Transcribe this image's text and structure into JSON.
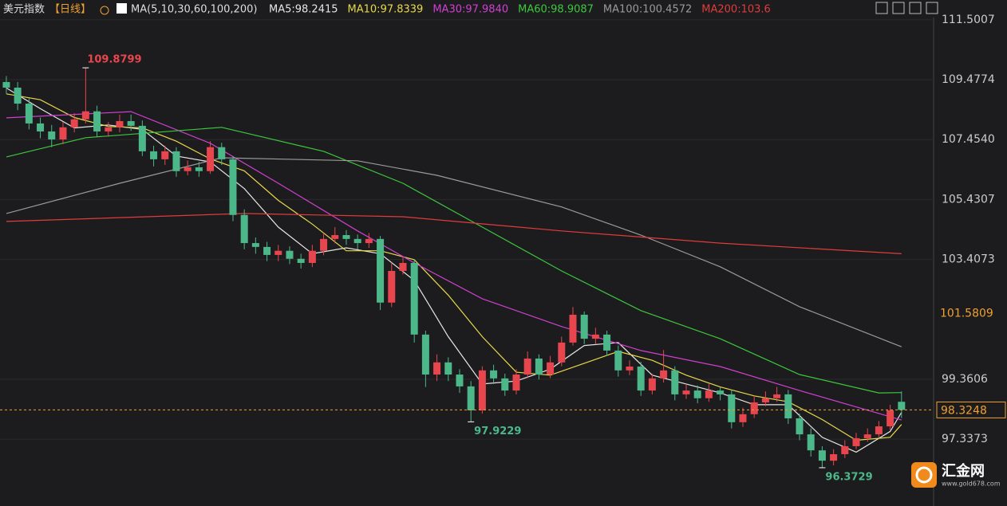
{
  "chart_data": {
    "type": "candlestick",
    "title": "美元指数",
    "period": "【日线】",
    "ma_label": "MA(5,10,30,60,100,200)",
    "ylim": [
      95.08,
      112.17
    ],
    "xlim": [
      -0.56,
      81.83
    ],
    "yticks": [
      111.5007,
      109.4774,
      {
        "value": 107.454,
        "label": "107.4540"
      },
      105.4307,
      103.4073,
      99.3606,
      97.3373
    ],
    "marker": 101.5809,
    "up_color": "#e8464e",
    "down_color": "#4cb88a",
    "open": [
      109.4,
      109.21,
      108.67,
      108.0,
      107.73,
      107.46,
      107.87,
      108.14,
      108.41,
      107.73,
      107.87,
      108.08,
      107.92,
      107.06,
      106.79,
      107.06,
      106.39,
      106.52,
      106.39,
      107.2,
      106.79,
      104.91,
      103.96,
      103.83,
      103.56,
      103.7,
      103.43,
      103.29,
      103.7,
      104.1,
      104.23,
      104.1,
      103.96,
      104.1,
      101.95,
      103.02,
      103.29,
      100.87,
      99.52,
      99.93,
      99.52,
      99.12,
      98.31,
      99.66,
      99.39,
      98.98,
      99.52,
      100.06,
      99.52,
      99.93,
      100.6,
      101.54,
      100.73,
      100.87,
      100.33,
      99.66,
      99.79,
      98.98,
      99.39,
      99.66,
      98.85,
      98.98,
      98.72,
      98.98,
      98.85,
      97.91,
      98.18,
      98.58,
      98.72,
      98.85,
      98.04,
      97.5,
      96.96,
      96.61,
      96.83,
      97.1,
      97.37,
      97.5,
      97.77,
      98.6
    ],
    "high": [
      109.6,
      109.4,
      108.85,
      108.2,
      107.95,
      108.05,
      108.35,
      109.8799,
      108.6,
      108.05,
      108.3,
      108.3,
      108.1,
      107.25,
      107.25,
      107.2,
      106.75,
      106.7,
      107.4,
      107.35,
      106.9,
      105.1,
      104.15,
      104.0,
      103.9,
      103.85,
      103.6,
      103.9,
      104.3,
      104.5,
      104.4,
      104.25,
      104.3,
      104.2,
      103.3,
      103.5,
      103.4,
      101.0,
      100.2,
      100.1,
      99.7,
      99.3,
      99.8,
      99.85,
      99.55,
      99.7,
      100.3,
      100.2,
      100.15,
      100.8,
      101.8,
      101.65,
      101.1,
      101.0,
      100.5,
      100.0,
      99.95,
      99.55,
      100.35,
      99.8,
      99.2,
      99.15,
      99.2,
      99.1,
      99.0,
      98.4,
      98.8,
      98.95,
      99.1,
      99.0,
      98.2,
      97.7,
      97.1,
      97.0,
      97.3,
      97.55,
      97.7,
      97.95,
      98.5,
      98.95
    ],
    "low": [
      109.0,
      108.45,
      107.8,
      107.5,
      107.2,
      107.3,
      107.7,
      108.0,
      107.55,
      107.55,
      107.7,
      107.75,
      106.9,
      106.55,
      106.6,
      106.2,
      106.25,
      106.2,
      106.3,
      106.6,
      104.7,
      103.75,
      103.6,
      103.35,
      103.35,
      103.25,
      103.1,
      103.15,
      103.55,
      103.95,
      103.9,
      103.75,
      103.8,
      101.7,
      101.8,
      102.9,
      100.6,
      99.1,
      99.3,
      99.3,
      98.9,
      97.9229,
      98.2,
      99.2,
      98.8,
      98.85,
      99.4,
      99.35,
      99.4,
      99.8,
      100.5,
      100.55,
      100.55,
      100.15,
      99.45,
      99.5,
      98.8,
      98.85,
      99.25,
      98.65,
      98.7,
      98.55,
      98.6,
      98.65,
      97.7,
      97.75,
      98.05,
      98.45,
      98.6,
      97.85,
      97.3,
      96.75,
      96.3729,
      96.45,
      96.7,
      97.0,
      97.25,
      97.4,
      97.65,
      98.05
    ],
    "close": [
      109.21,
      108.67,
      108.0,
      107.73,
      107.46,
      107.87,
      108.14,
      108.41,
      107.73,
      107.87,
      108.08,
      107.92,
      107.06,
      106.79,
      107.06,
      106.39,
      106.52,
      106.39,
      107.2,
      106.79,
      104.91,
      103.96,
      103.83,
      103.56,
      103.7,
      103.43,
      103.29,
      103.7,
      104.1,
      104.23,
      104.1,
      103.96,
      104.1,
      101.95,
      103.02,
      103.29,
      100.87,
      99.52,
      99.93,
      99.52,
      99.12,
      98.31,
      99.66,
      99.39,
      98.98,
      99.52,
      100.06,
      99.52,
      99.93,
      100.6,
      101.54,
      100.73,
      100.87,
      100.33,
      99.66,
      99.79,
      98.98,
      99.39,
      99.66,
      98.85,
      98.98,
      98.72,
      98.98,
      98.85,
      97.91,
      98.18,
      98.58,
      98.72,
      98.85,
      98.04,
      97.5,
      96.96,
      96.61,
      96.83,
      97.1,
      97.37,
      97.5,
      97.77,
      98.31,
      98.3248
    ],
    "series": [
      {
        "name": "MA5:98.2415",
        "color": "#e6e6e6",
        "x": [
          0,
          3,
          6,
          9,
          12,
          15,
          18,
          21,
          24,
          27,
          30,
          33,
          36,
          39,
          42,
          45,
          48,
          51,
          54,
          57,
          60,
          63,
          66,
          69,
          72,
          75,
          78,
          79
        ],
        "values": [
          109.2,
          108.5,
          107.85,
          107.95,
          107.8,
          106.9,
          106.7,
          105.8,
          104.5,
          103.6,
          103.8,
          103.6,
          102.7,
          100.8,
          99.2,
          99.3,
          99.7,
          100.5,
          100.6,
          99.5,
          99.2,
          98.9,
          98.5,
          98.5,
          97.4,
          96.9,
          97.6,
          98.2415
        ]
      },
      {
        "name": "MA10:97.8339",
        "color": "#e8d84a",
        "x": [
          0,
          3,
          6,
          9,
          12,
          15,
          18,
          21,
          24,
          27,
          30,
          33,
          36,
          39,
          42,
          45,
          48,
          51,
          54,
          57,
          60,
          63,
          66,
          69,
          72,
          75,
          78,
          79
        ],
        "values": [
          109.0,
          108.8,
          108.2,
          107.9,
          107.85,
          107.4,
          106.8,
          106.4,
          105.4,
          104.6,
          103.7,
          103.7,
          103.4,
          102.2,
          100.8,
          99.6,
          99.5,
          99.9,
          100.3,
          100.0,
          99.5,
          99.1,
          98.8,
          98.6,
          98.0,
          97.3,
          97.4,
          97.8339
        ]
      },
      {
        "name": "MA30:97.9840",
        "color": "#d040d0",
        "x": [
          0,
          11,
          18,
          24,
          31,
          36,
          42,
          49,
          56,
          63,
          70,
          79
        ],
        "values": [
          108.19,
          108.4,
          107.33,
          105.98,
          104.37,
          103.29,
          102.08,
          101.14,
          100.33,
          99.79,
          98.98,
          97.984
        ]
      },
      {
        "name": "MA60:98.9087",
        "color": "#3cc83c",
        "x": [
          0,
          7,
          19,
          28,
          35,
          42,
          49,
          56,
          63,
          70,
          77,
          79
        ],
        "values": [
          106.87,
          107.52,
          107.87,
          107.06,
          105.98,
          104.5,
          103.02,
          101.68,
          100.73,
          99.52,
          98.9,
          98.9087
        ]
      },
      {
        "name": "MA100:100.4572",
        "color": "#9a9a9a",
        "x": [
          0,
          10,
          19,
          31,
          38,
          49,
          56,
          63,
          70,
          79
        ],
        "values": [
          104.96,
          105.98,
          106.84,
          106.74,
          106.25,
          105.18,
          104.23,
          103.16,
          101.81,
          100.4572
        ]
      },
      {
        "name": "MA200:103.6",
        "color": "#e03c3c",
        "x": [
          0,
          21,
          35,
          49,
          63,
          79
        ],
        "values": [
          104.69,
          104.96,
          104.85,
          104.37,
          103.96,
          103.6
        ]
      }
    ]
  },
  "watermark": {
    "name": "汇金网",
    "url": "www.gold678.com"
  }
}
